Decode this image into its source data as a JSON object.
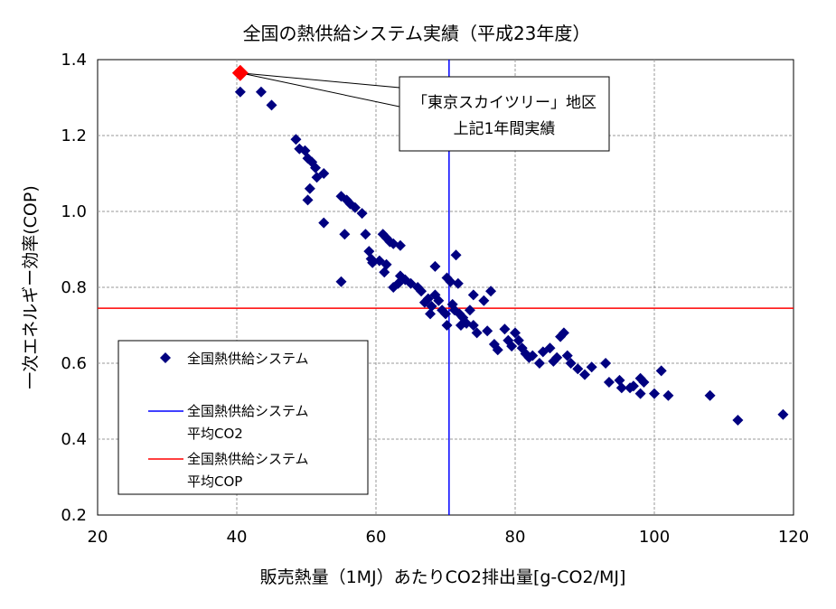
{
  "chart_data": {
    "type": "scatter",
    "title": "全国の熱供給システム実績（平成23年度）",
    "xlabel": "販売熱量（1MJ）あたりCO2排出量[g-CO2/MJ]",
    "ylabel": "一次エネルギー効率(COP)",
    "xlim": [
      20,
      120
    ],
    "ylim": [
      0.2,
      1.4
    ],
    "x_ticks": [
      "20",
      "40",
      "60",
      "80",
      "100",
      "120"
    ],
    "y_ticks": [
      "0.2",
      "0.4",
      "0.6",
      "0.8",
      "1.0",
      "1.2",
      "1.4"
    ],
    "grid": true,
    "legend_position": "bottom-left",
    "colors": {
      "series": "#000080",
      "avg_co2": "#0000ff",
      "avg_cop": "#ff0000",
      "highlight": "#ff0000"
    },
    "highlight": {
      "x": 40.5,
      "y": 1.365,
      "label_lines": [
        "「東京スカイツリー」地区",
        "上記1年間実績"
      ]
    },
    "reference_lines": [
      {
        "name_lines": [
          "全国熱供給システム",
          "平均CO2"
        ],
        "orientation": "vertical",
        "value": 70.5
      },
      {
        "name_lines": [
          "全国熱供給システム",
          "平均COP"
        ],
        "orientation": "horizontal",
        "value": 0.745
      }
    ],
    "series": [
      {
        "name": "全国熱供給システム",
        "marker": "diamond",
        "points": [
          [
            40.5,
            1.315
          ],
          [
            43.5,
            1.315
          ],
          [
            45,
            1.28
          ],
          [
            48.5,
            1.19
          ],
          [
            49,
            1.165
          ],
          [
            49.8,
            1.16
          ],
          [
            50.2,
            1.14
          ],
          [
            50.8,
            1.13
          ],
          [
            51.3,
            1.115
          ],
          [
            51.5,
            1.09
          ],
          [
            52.5,
            1.1
          ],
          [
            50.5,
            1.06
          ],
          [
            50.2,
            1.03
          ],
          [
            52.5,
            0.97
          ],
          [
            55,
            1.04
          ],
          [
            55.8,
            1.03
          ],
          [
            56.3,
            1.02
          ],
          [
            57,
            1.01
          ],
          [
            58,
            0.995
          ],
          [
            55.5,
            0.94
          ],
          [
            55,
            0.815
          ],
          [
            58.5,
            0.94
          ],
          [
            59,
            0.895
          ],
          [
            59.3,
            0.875
          ],
          [
            59.5,
            0.865
          ],
          [
            60.5,
            0.87
          ],
          [
            61,
            0.94
          ],
          [
            61.5,
            0.93
          ],
          [
            62,
            0.92
          ],
          [
            62.5,
            0.915
          ],
          [
            63.5,
            0.91
          ],
          [
            61.2,
            0.84
          ],
          [
            61.5,
            0.86
          ],
          [
            62.5,
            0.8
          ],
          [
            63.2,
            0.81
          ],
          [
            63.5,
            0.83
          ],
          [
            64.2,
            0.82
          ],
          [
            65,
            0.81
          ],
          [
            66,
            0.8
          ],
          [
            66.5,
            0.79
          ],
          [
            67,
            0.76
          ],
          [
            67.5,
            0.77
          ],
          [
            68,
            0.75
          ],
          [
            68.5,
            0.78
          ],
          [
            69,
            0.765
          ],
          [
            69.5,
            0.74
          ],
          [
            70,
            0.73
          ],
          [
            70.2,
            0.825
          ],
          [
            70.7,
            0.815
          ],
          [
            71,
            0.755
          ],
          [
            71.3,
            0.74
          ],
          [
            71.5,
            0.885
          ],
          [
            71.8,
            0.81
          ],
          [
            72,
            0.73
          ],
          [
            72.5,
            0.72
          ],
          [
            73,
            0.705
          ],
          [
            73.5,
            0.74
          ],
          [
            74,
            0.78
          ],
          [
            74,
            0.7
          ],
          [
            74.5,
            0.68
          ],
          [
            72.2,
            0.7
          ],
          [
            70.2,
            0.7
          ],
          [
            67.8,
            0.73
          ],
          [
            68.5,
            0.855
          ],
          [
            75.5,
            0.765
          ],
          [
            76.5,
            0.79
          ],
          [
            76,
            0.685
          ],
          [
            77,
            0.65
          ],
          [
            77.5,
            0.635
          ],
          [
            78.5,
            0.69
          ],
          [
            79,
            0.66
          ],
          [
            79.5,
            0.645
          ],
          [
            80,
            0.68
          ],
          [
            80.5,
            0.66
          ],
          [
            81,
            0.64
          ],
          [
            81.5,
            0.625
          ],
          [
            82,
            0.615
          ],
          [
            82.5,
            0.62
          ],
          [
            83.5,
            0.6
          ],
          [
            84,
            0.63
          ],
          [
            85,
            0.64
          ],
          [
            85.5,
            0.605
          ],
          [
            86,
            0.615
          ],
          [
            86.5,
            0.67
          ],
          [
            87,
            0.68
          ],
          [
            87.5,
            0.62
          ],
          [
            88,
            0.6
          ],
          [
            89,
            0.585
          ],
          [
            90,
            0.57
          ],
          [
            91,
            0.59
          ],
          [
            93,
            0.6
          ],
          [
            93.5,
            0.55
          ],
          [
            95,
            0.555
          ],
          [
            95.3,
            0.535
          ],
          [
            96.5,
            0.535
          ],
          [
            97,
            0.54
          ],
          [
            98,
            0.56
          ],
          [
            98.5,
            0.55
          ],
          [
            98,
            0.52
          ],
          [
            100,
            0.52
          ],
          [
            101,
            0.58
          ],
          [
            102,
            0.515
          ],
          [
            108,
            0.515
          ],
          [
            112,
            0.45
          ],
          [
            118.5,
            0.465
          ]
        ]
      }
    ]
  }
}
